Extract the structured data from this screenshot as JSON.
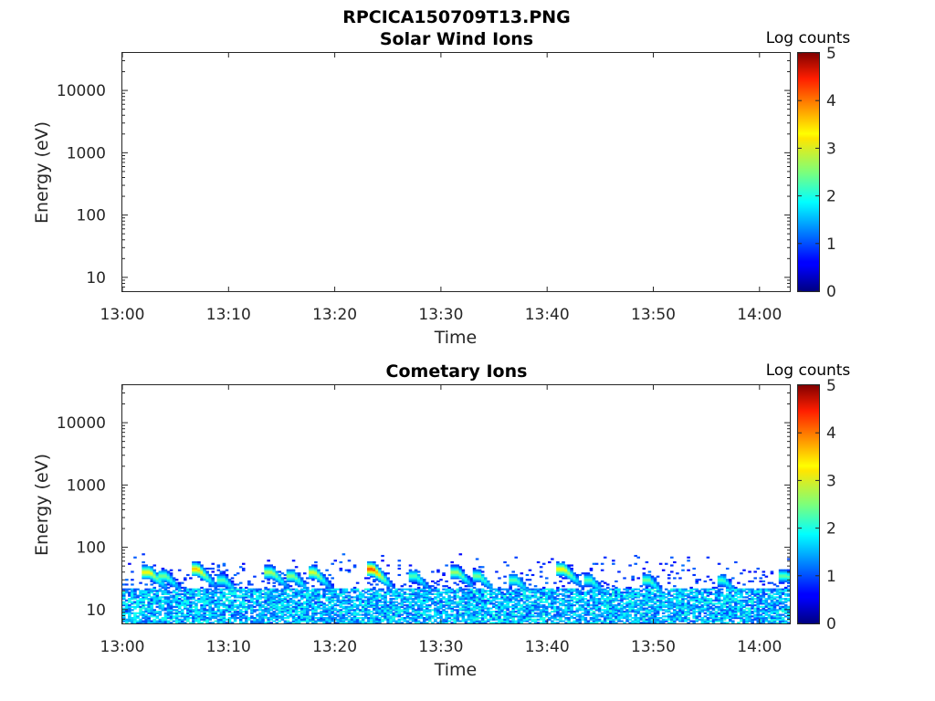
{
  "figure_title": "RPCICA150709T13.PNG",
  "colormap": "jet",
  "chart_data": [
    {
      "type": "heatmap",
      "title": "Solar Wind Ions",
      "xlabel": "Time",
      "ylabel": "Energy (eV)",
      "y_scale": "log",
      "ylim": [
        6,
        40000
      ],
      "x_ticks": [
        "13:00",
        "13:10",
        "13:20",
        "13:30",
        "13:40",
        "13:50",
        "14:00"
      ],
      "y_ticks": [
        10,
        100,
        1000,
        10000
      ],
      "y_tick_labels": [
        "10",
        "100",
        "1000",
        "10000"
      ],
      "colorbar": {
        "label": "Log counts",
        "range": [
          0,
          5
        ],
        "ticks": [
          "0",
          "1",
          "2",
          "3",
          "4",
          "5"
        ]
      },
      "events": []
    },
    {
      "type": "heatmap",
      "title": "Cometary Ions",
      "xlabel": "Time",
      "ylabel": "Energy (eV)",
      "y_scale": "log",
      "ylim": [
        6,
        40000
      ],
      "x_ticks": [
        "13:00",
        "13:10",
        "13:20",
        "13:30",
        "13:40",
        "13:50",
        "14:00"
      ],
      "y_ticks": [
        10,
        100,
        1000,
        10000
      ],
      "y_tick_labels": [
        "10",
        "100",
        "1000",
        "10000"
      ],
      "colorbar": {
        "label": "Log counts",
        "range": [
          0,
          5
        ],
        "ticks": [
          "0",
          "1",
          "2",
          "3",
          "4",
          "5"
        ]
      },
      "background": {
        "e_min": 6,
        "e_core": 22,
        "e_sparse_max": 80,
        "level": 1.5
      },
      "events": [
        {
          "t": 2.5,
          "e": 40,
          "peak": 3.3
        },
        {
          "t": 4.0,
          "e": 35,
          "peak": 2.6
        },
        {
          "t": 7.0,
          "e": 45,
          "peak": 3.6
        },
        {
          "t": 9.5,
          "e": 30,
          "peak": 2.4
        },
        {
          "t": 14.0,
          "e": 40,
          "peak": 2.9
        },
        {
          "t": 16.0,
          "e": 35,
          "peak": 2.7
        },
        {
          "t": 18.0,
          "e": 40,
          "peak": 3.1
        },
        {
          "t": 23.5,
          "e": 45,
          "peak": 4.2
        },
        {
          "t": 27.5,
          "e": 35,
          "peak": 2.4
        },
        {
          "t": 31.5,
          "e": 40,
          "peak": 2.8
        },
        {
          "t": 33.5,
          "e": 35,
          "peak": 2.6
        },
        {
          "t": 37.0,
          "e": 30,
          "peak": 2.4
        },
        {
          "t": 41.5,
          "e": 45,
          "peak": 3.3
        },
        {
          "t": 44.0,
          "e": 30,
          "peak": 2.4
        },
        {
          "t": 49.5,
          "e": 30,
          "peak": 2.5
        },
        {
          "t": 56.5,
          "e": 30,
          "peak": 2.3
        },
        {
          "t": 62.5,
          "e": 35,
          "peak": 2.5
        }
      ]
    }
  ]
}
